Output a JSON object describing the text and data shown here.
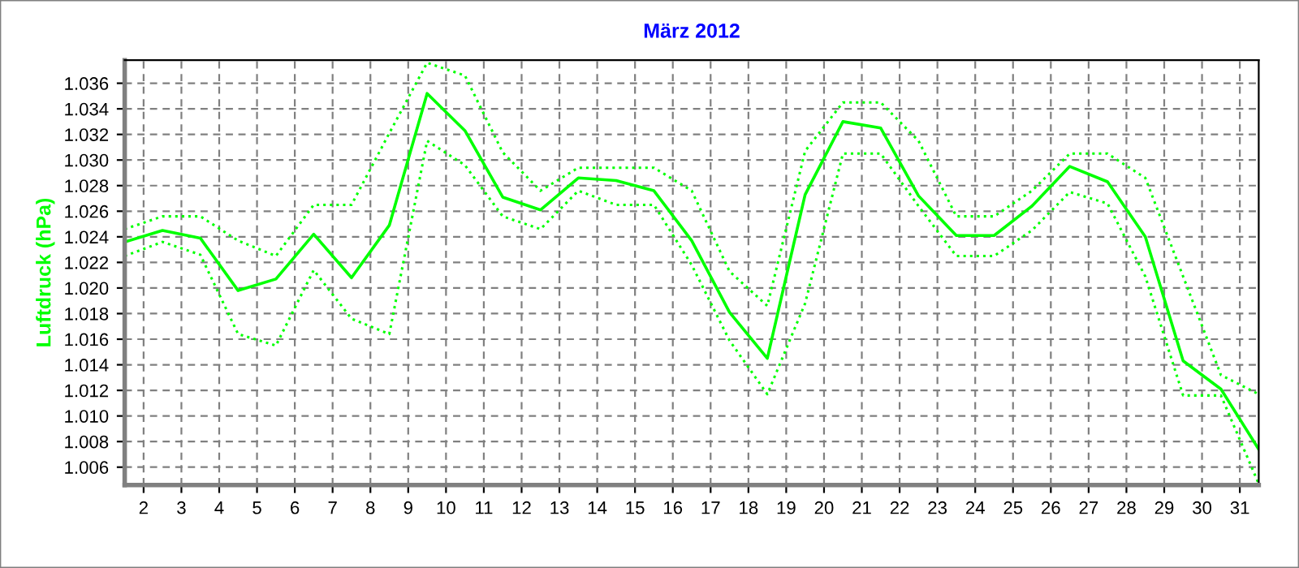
{
  "chart_data": {
    "type": "line",
    "title": "März 2012",
    "ylabel": "Luftdruck (hPa)",
    "x": [
      1.5,
      2.5,
      3.5,
      4.5,
      5.5,
      6.5,
      7.5,
      8.5,
      9.5,
      10.5,
      11.5,
      12.5,
      13.5,
      14.5,
      15.5,
      16.5,
      17.5,
      18.5,
      19.5,
      20.5,
      21.5,
      22.5,
      23.5,
      24.5,
      25.5,
      26.5,
      27.5,
      28.5,
      29.5,
      30.5,
      31.5
    ],
    "series": [
      {
        "color": "#00ff00",
        "line_style": "solid",
        "values": [
          1.0236,
          1.0245,
          1.0239,
          1.0198,
          1.0207,
          1.0242,
          1.0208,
          1.0249,
          1.0352,
          1.0323,
          1.0271,
          1.0261,
          1.0286,
          1.0284,
          1.0276,
          1.0237,
          1.0181,
          1.0145,
          1.0273,
          1.033,
          1.0325,
          1.0272,
          1.0241,
          1.0241,
          1.0264,
          1.0295,
          1.0283,
          1.024,
          1.0143,
          1.0121,
          1.0074
        ]
      },
      {
        "color": "#00ff00",
        "line_style": "dotted",
        "values": [
          1.0246,
          1.0256,
          1.0256,
          1.0237,
          1.0225,
          1.0265,
          1.0265,
          1.0321,
          1.0376,
          1.0366,
          1.0306,
          1.0276,
          1.0294,
          1.0294,
          1.0294,
          1.0276,
          1.0213,
          1.0186,
          1.0307,
          1.0345,
          1.0345,
          1.0315,
          1.0256,
          1.0256,
          1.0276,
          1.0305,
          1.0305,
          1.0286,
          1.0209,
          1.0132,
          1.0117
        ]
      },
      {
        "color": "#00ff00",
        "line_style": "dotted",
        "values": [
          1.0225,
          1.0236,
          1.0226,
          1.0164,
          1.0155,
          1.0214,
          1.0176,
          1.0164,
          1.0315,
          1.0296,
          1.0256,
          1.0246,
          1.0276,
          1.0265,
          1.0265,
          1.0218,
          1.0159,
          1.0117,
          1.0188,
          1.0305,
          1.0305,
          1.0264,
          1.0225,
          1.0225,
          1.0245,
          1.0275,
          1.0266,
          1.0209,
          1.0116,
          1.0116,
          1.0047
        ]
      }
    ],
    "xlim": [
      1.5,
      31.5
    ],
    "xticks": [
      2,
      3,
      4,
      5,
      6,
      7,
      8,
      9,
      10,
      11,
      12,
      13,
      14,
      15,
      16,
      17,
      18,
      19,
      20,
      21,
      22,
      23,
      24,
      25,
      26,
      27,
      28,
      29,
      30,
      31
    ],
    "ylim": [
      1.0046,
      1.0378
    ],
    "yticks": [
      {
        "value": 1.006,
        "label": "1.006"
      },
      {
        "value": 1.008,
        "label": "1.008"
      },
      {
        "value": 1.01,
        "label": "1.010"
      },
      {
        "value": 1.012,
        "label": "1.012"
      },
      {
        "value": 1.014,
        "label": "1.014"
      },
      {
        "value": 1.016,
        "label": "1.016"
      },
      {
        "value": 1.018,
        "label": "1.018"
      },
      {
        "value": 1.02,
        "label": "1.020"
      },
      {
        "value": 1.022,
        "label": "1.022"
      },
      {
        "value": 1.024,
        "label": "1.024"
      },
      {
        "value": 1.026,
        "label": "1.026"
      },
      {
        "value": 1.028,
        "label": "1.028"
      },
      {
        "value": 1.03,
        "label": "1.030"
      },
      {
        "value": 1.032,
        "label": "1.032"
      },
      {
        "value": 1.034,
        "label": "1.034"
      },
      {
        "value": 1.036,
        "label": "1.036"
      }
    ],
    "grid": true,
    "marker": "none"
  }
}
